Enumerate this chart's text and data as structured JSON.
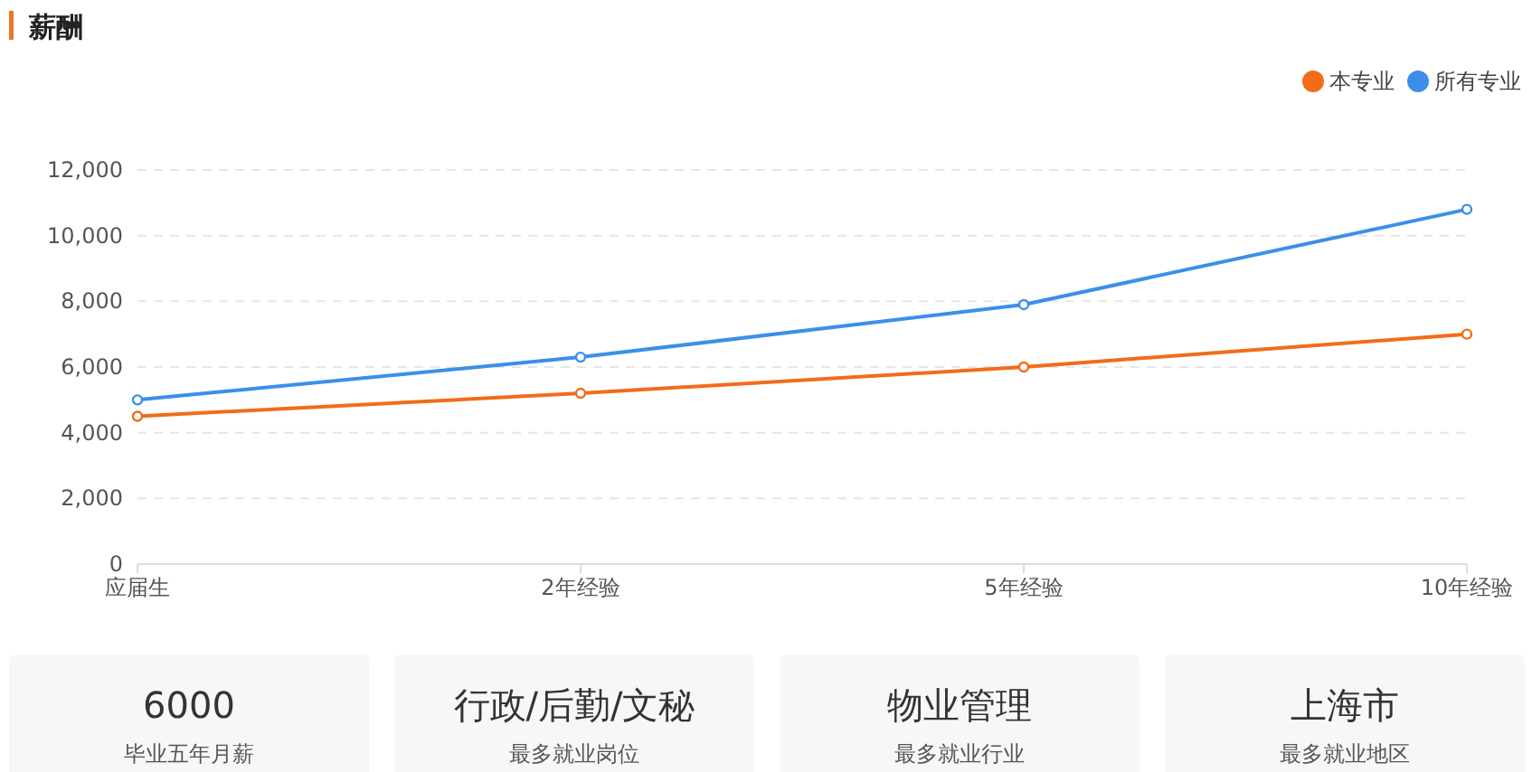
{
  "chart_data": [
    {
      "type": "line",
      "title": "薪酬",
      "categories": [
        "应届生",
        "2年经验",
        "5年经验",
        "10年经验"
      ],
      "series": [
        {
          "name": "本专业",
          "color": "#f26c17",
          "values": [
            4500,
            5200,
            6000,
            7000
          ]
        },
        {
          "name": "所有专业",
          "color": "#3c8fe8",
          "values": [
            5000,
            6300,
            7900,
            10800
          ]
        }
      ],
      "ylim": [
        0,
        12000
      ],
      "yticks": [
        0,
        {
          "value": 2000,
          "label": "2,000"
        },
        {
          "value": 4000,
          "label": "4,000"
        },
        {
          "value": 6000,
          "label": "6,000"
        },
        {
          "value": 8000,
          "label": "8,000"
        },
        {
          "value": 10000,
          "label": "10,000"
        },
        {
          "value": 12000,
          "label": "12,000"
        }
      ],
      "grid": "y",
      "legend": "top right",
      "marker": "circle",
      "line_style": "solid"
    },
    {
      "type": "other",
      "annotations": [
        "6000",
        "毕业五年月薪",
        "行政/后勤/文秘",
        "最多就业岗位",
        "物业管理",
        "最多就业行业",
        "上海市",
        "最多就业地区"
      ]
    }
  ]
}
